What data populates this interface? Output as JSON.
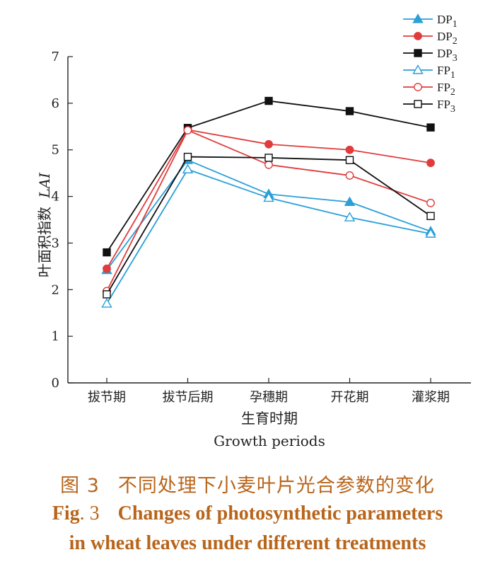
{
  "chart_data": {
    "type": "line",
    "categories": [
      "拔节期",
      "拔节后期",
      "孕穗期",
      "开花期",
      "灌浆期"
    ],
    "ylabel": "叶面积指数",
    "ylabel_italic": "LAI",
    "xlabel": "生育时期",
    "xlabel_en": "Growth periods",
    "ylim": [
      0,
      7
    ],
    "yticks": [
      0,
      1,
      2,
      3,
      4,
      5,
      6,
      7
    ],
    "grid": false,
    "legend_position": "top-right",
    "series": [
      {
        "name": "DP1",
        "label_base": "DP",
        "label_sub": "1",
        "color": "#2a9fd8",
        "marker": "triangle",
        "filled": true,
        "values": [
          2.42,
          4.78,
          4.05,
          3.88,
          3.25
        ]
      },
      {
        "name": "DP2",
        "label_base": "DP",
        "label_sub": "2",
        "color": "#e03c3c",
        "marker": "circle",
        "filled": true,
        "values": [
          2.45,
          5.43,
          5.12,
          5.0,
          4.72
        ]
      },
      {
        "name": "DP3",
        "label_base": "DP",
        "label_sub": "3",
        "color": "#111111",
        "marker": "square",
        "filled": true,
        "values": [
          2.8,
          5.47,
          6.05,
          5.83,
          5.48
        ]
      },
      {
        "name": "FP1",
        "label_base": "FP",
        "label_sub": "1",
        "color": "#2a9fd8",
        "marker": "triangle",
        "filled": false,
        "values": [
          1.7,
          4.58,
          3.97,
          3.55,
          3.2
        ]
      },
      {
        "name": "FP2",
        "label_base": "FP",
        "label_sub": "2",
        "color": "#e03c3c",
        "marker": "circle",
        "filled": false,
        "values": [
          1.97,
          5.42,
          4.68,
          4.45,
          3.86
        ]
      },
      {
        "name": "FP3",
        "label_base": "FP",
        "label_sub": "3",
        "color": "#111111",
        "marker": "square",
        "filled": false,
        "values": [
          1.9,
          4.85,
          4.83,
          4.78,
          3.58
        ]
      }
    ]
  },
  "caption": {
    "zh_label": "图",
    "zh_num": "3",
    "zh_text": "不同处理下小麦叶片光合参数的变化",
    "en_label": "Fig",
    "en_num": ". 3",
    "en_line1": "Changes of photosynthetic parameters",
    "en_line2": "in wheat leaves under different treatments"
  }
}
